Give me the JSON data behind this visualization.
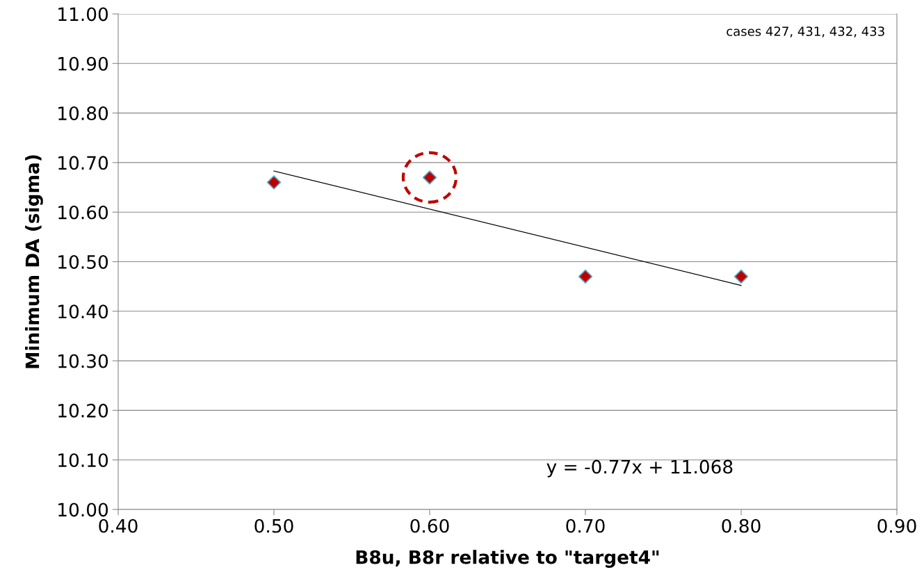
{
  "chart_data": {
    "type": "scatter",
    "xlabel": "B8u, B8r relative to \"target4\"",
    "ylabel": "Minimum DA (sigma)",
    "xlim": [
      0.4,
      0.9
    ],
    "xticks": [
      {
        "value": 0.4,
        "label": "0.40"
      },
      {
        "value": 0.5,
        "label": "0.50"
      },
      {
        "value": 0.6,
        "label": "0.60"
      },
      {
        "value": 0.7,
        "label": "0.70"
      },
      {
        "value": 0.8,
        "label": "0.80"
      },
      {
        "value": 0.9,
        "label": "0.90"
      }
    ],
    "ylim": [
      10.0,
      11.0
    ],
    "yticks": [
      {
        "value": 10.0,
        "label": "10.00"
      },
      {
        "value": 10.1,
        "label": "10.10"
      },
      {
        "value": 10.2,
        "label": "10.20"
      },
      {
        "value": 10.3,
        "label": "10.30"
      },
      {
        "value": 10.4,
        "label": "10.40"
      },
      {
        "value": 10.5,
        "label": "10.50"
      },
      {
        "value": 10.6,
        "label": "10.60"
      },
      {
        "value": 10.7,
        "label": "10.70"
      },
      {
        "value": 10.8,
        "label": "10.80"
      },
      {
        "value": 10.9,
        "label": "10.90"
      },
      {
        "value": 11.0,
        "label": "11.00"
      }
    ],
    "grid": "y",
    "series": [
      {
        "color": "#c00000",
        "marker": "diamond",
        "x": [
          0.5,
          0.6,
          0.7,
          0.8
        ],
        "values": [
          10.66,
          10.67,
          10.47,
          10.47
        ]
      },
      {
        "type": "line",
        "color": "#000000",
        "marker": "none",
        "line_style": "solid",
        "x": [
          0.5,
          0.8
        ],
        "values": [
          10.683,
          10.452
        ]
      }
    ],
    "annotations": [
      "cases 427, 431, 432, 433",
      "y = -0.77x + 11.068"
    ]
  }
}
